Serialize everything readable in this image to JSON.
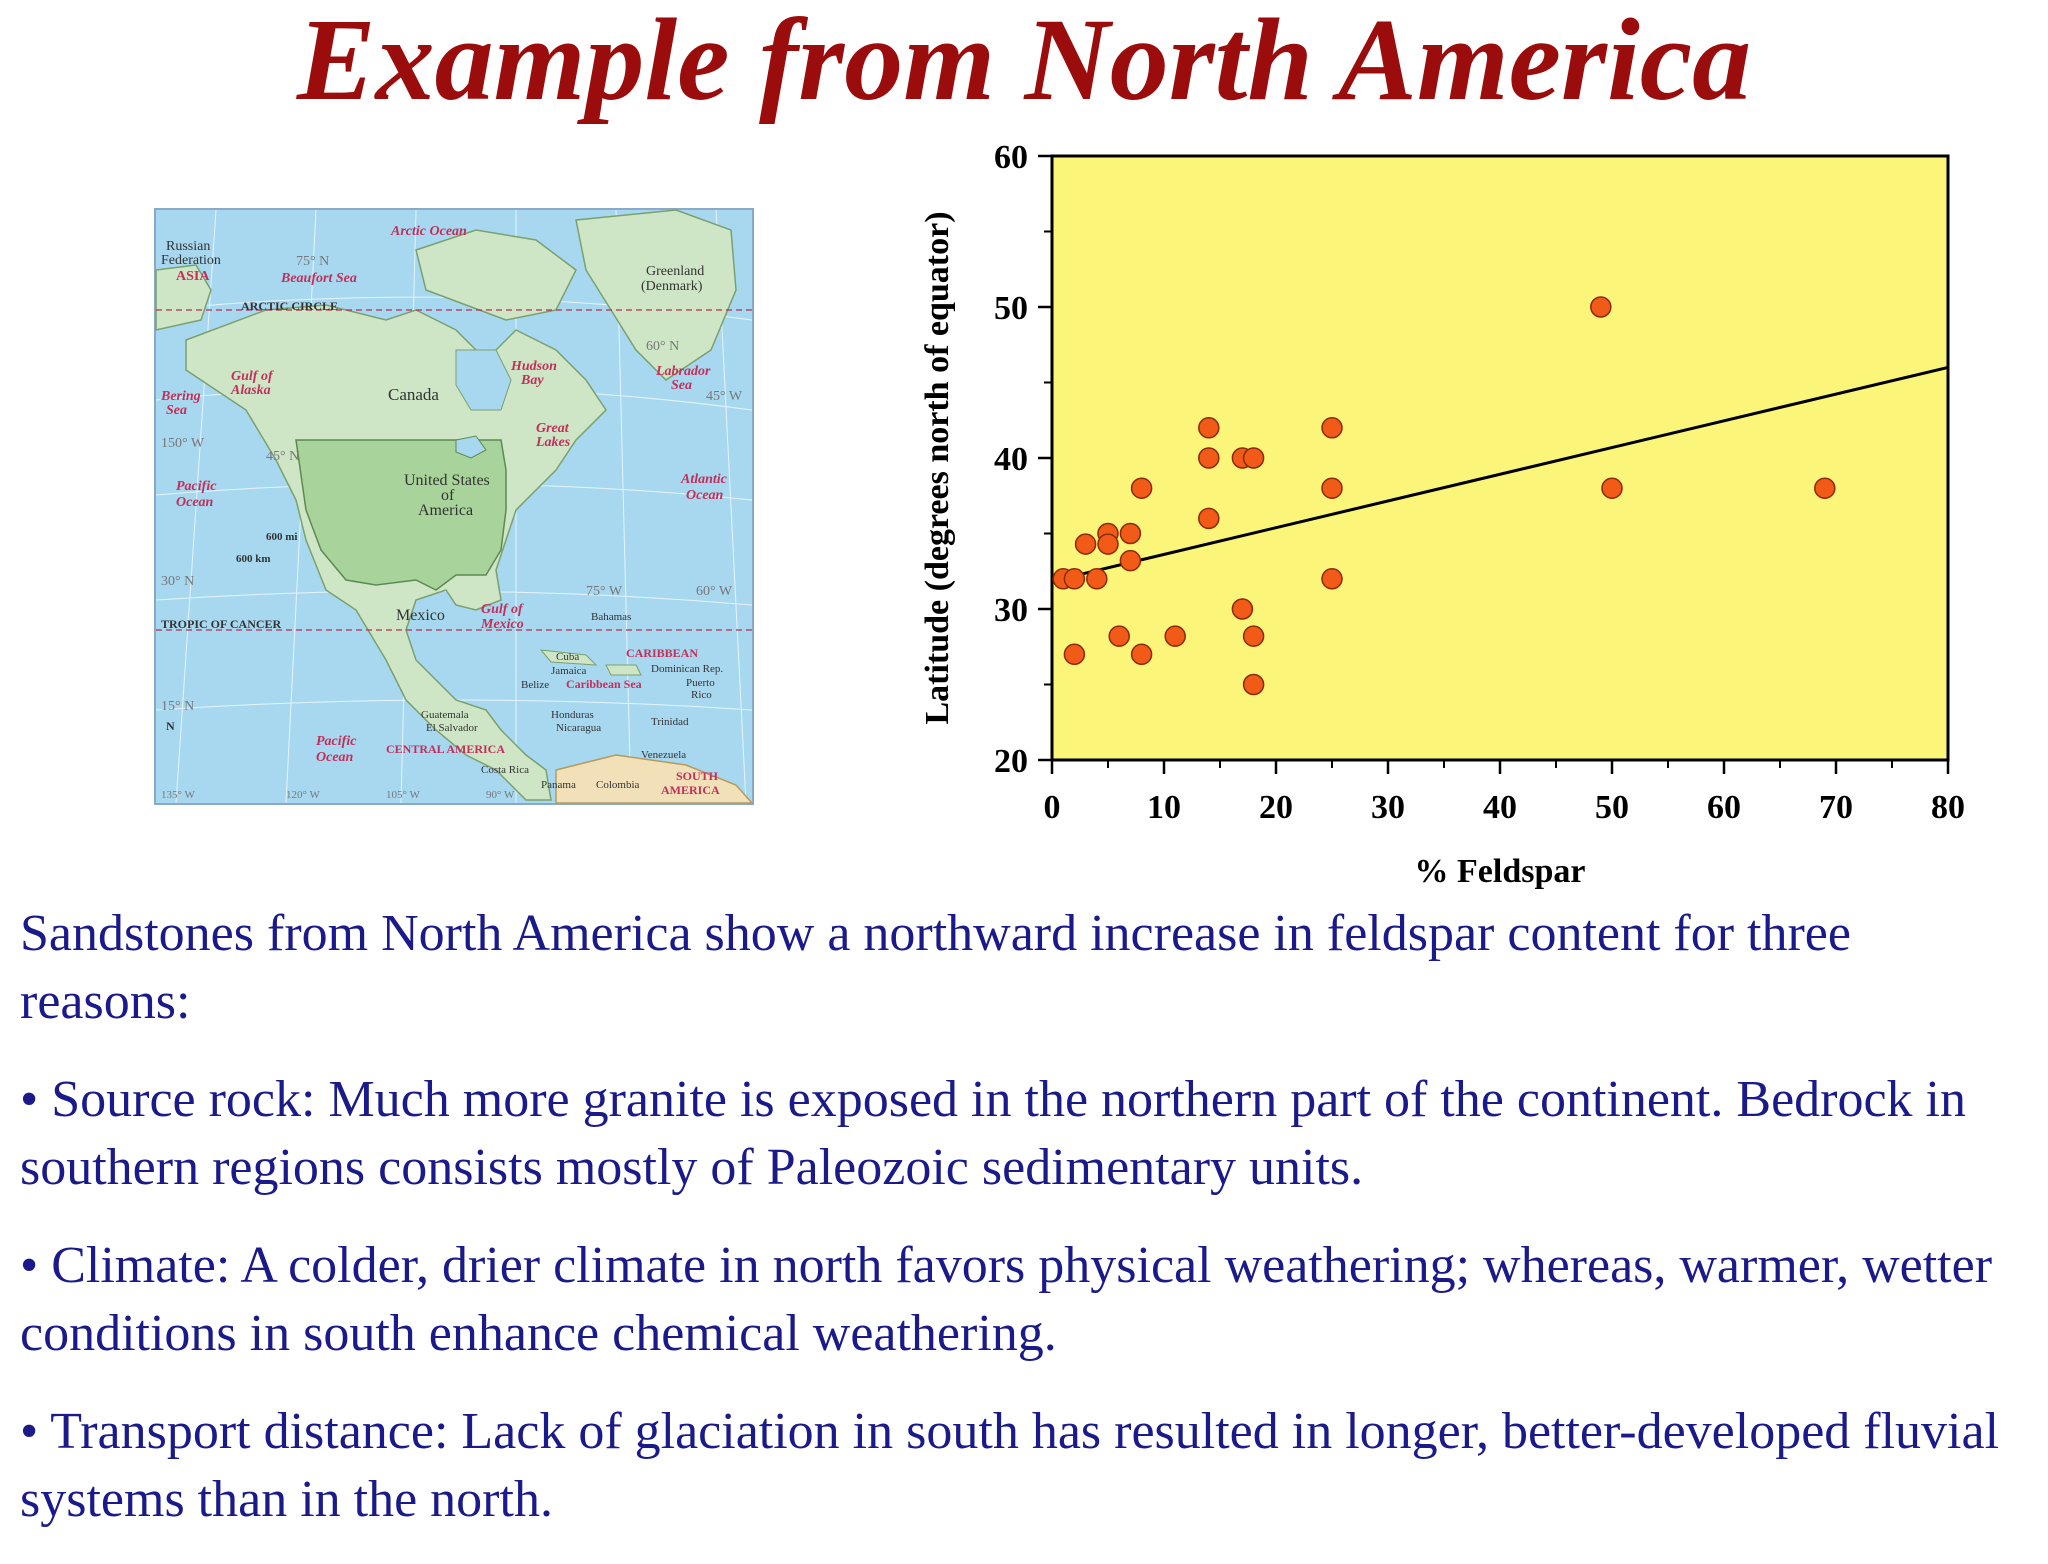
{
  "slide": {
    "title": "Example from North America",
    "intro": "Sandstones from North America show a northward increase in feldspar content for three reasons:",
    "bullets": [
      "• Source rock: Much more granite is exposed in the northern part of the continent. Bedrock in southern regions consists mostly of Paleozoic sedimentary units.",
      "• Climate: A colder, drier climate in north favors physical weathering; whereas, warmer, wetter conditions in south enhance chemical weathering.",
      "• Transport distance: Lack of glaciation in south has resulted in longer, better-developed fluvial systems than in the north."
    ]
  },
  "map": {
    "labels": {
      "arctic_ocean": "Arctic Ocean",
      "russian": "Russian",
      "federation": "Federation",
      "asia": "ASIA",
      "lat75": "75° N",
      "beaufort": "Beaufort Sea",
      "greenland": "Greenland",
      "denmark": "(Denmark)",
      "arctic_circle": "ARCTIC CIRCLE",
      "lat60": "60° N",
      "hudson1": "Hudson",
      "hudson2": "Bay",
      "labrador1": "Labrador",
      "labrador2": "Sea",
      "lon45": "45° W",
      "gulf_alaska1": "Gulf of",
      "gulf_alaska2": "Alaska",
      "bering1": "Bering",
      "bering2": "Sea",
      "canada": "Canada",
      "great1": "Great",
      "great2": "Lakes",
      "lon150": "150° W",
      "lat45": "45° N",
      "pacific1": "Pacific",
      "pacific2": "Ocean",
      "us1": "United States",
      "us2": "of",
      "us3": "America",
      "atlantic1": "Atlantic",
      "atlantic2": "Ocean",
      "mi": "600 mi",
      "km": "600 km",
      "lat30": "30° N",
      "lon75": "75° W",
      "lon60": "60° W",
      "tropic": "TROPIC OF CANCER",
      "mexico": "Mexico",
      "gulf_mexico1": "Gulf of",
      "gulf_mexico2": "Mexico",
      "bahamas": "Bahamas",
      "caribbean": "CARIBBEAN",
      "dominican": "Dominican Rep.",
      "cuba": "Cuba",
      "jamaica": "Jamaica",
      "belize": "Belize",
      "caribbean_sea": "Caribbean Sea",
      "puerto1": "Puerto",
      "puerto2": "Rico",
      "lat15": "15° N",
      "guatemala": "Guatemala",
      "el_salvador": "El Salvador",
      "honduras": "Honduras",
      "nicaragua": "Nicaragua",
      "trinidad": "Trinidad",
      "pacific_s1": "Pacific",
      "pacific_s2": "Ocean",
      "central_america": "CENTRAL AMERICA",
      "venezuela": "Venezuela",
      "costa_rica": "Costa Rica",
      "panama": "Panama",
      "colombia": "Colombia",
      "south1": "SOUTH",
      "south2": "AMERICA",
      "n": "N",
      "lon135": "135° W",
      "lon120": "120° W",
      "lon105": "105° W",
      "lon90": "90° W"
    },
    "colors": {
      "ocean": "#a8d8f0",
      "land": "#cfe6c6",
      "us": "#a8d39a",
      "water_label": "#c0305a"
    }
  },
  "chart_data": {
    "type": "scatter",
    "title": "",
    "xlabel": "% Feldspar",
    "ylabel": "Latitude (degrees north of equator)",
    "xlim": [
      0,
      80
    ],
    "ylim": [
      20,
      60
    ],
    "xticks": [
      0,
      10,
      20,
      30,
      40,
      50,
      60,
      70,
      80
    ],
    "yticks": [
      20,
      30,
      40,
      50,
      60
    ],
    "grid": false,
    "legend": "none",
    "colors": {
      "background": "#fbf57a",
      "point": "#f25a18",
      "point_edge": "#8a2a00",
      "line": "#000000"
    },
    "points": [
      {
        "x": 1,
        "y": 32
      },
      {
        "x": 2,
        "y": 32
      },
      {
        "x": 2,
        "y": 27
      },
      {
        "x": 3,
        "y": 34.3
      },
      {
        "x": 4,
        "y": 32
      },
      {
        "x": 5,
        "y": 35
      },
      {
        "x": 5,
        "y": 34.3
      },
      {
        "x": 6,
        "y": 28.2
      },
      {
        "x": 7,
        "y": 35
      },
      {
        "x": 7,
        "y": 33.2
      },
      {
        "x": 8,
        "y": 38
      },
      {
        "x": 8,
        "y": 27
      },
      {
        "x": 11,
        "y": 28.2
      },
      {
        "x": 14,
        "y": 42
      },
      {
        "x": 14,
        "y": 40
      },
      {
        "x": 14,
        "y": 36
      },
      {
        "x": 17,
        "y": 40
      },
      {
        "x": 18,
        "y": 40
      },
      {
        "x": 17,
        "y": 30
      },
      {
        "x": 18,
        "y": 28.2
      },
      {
        "x": 18,
        "y": 25
      },
      {
        "x": 25,
        "y": 42
      },
      {
        "x": 25,
        "y": 38
      },
      {
        "x": 25,
        "y": 32
      },
      {
        "x": 49,
        "y": 50
      },
      {
        "x": 50,
        "y": 38
      },
      {
        "x": 69,
        "y": 38
      }
    ],
    "trendline": {
      "x": [
        2,
        80
      ],
      "y": [
        32.2,
        46
      ]
    }
  }
}
